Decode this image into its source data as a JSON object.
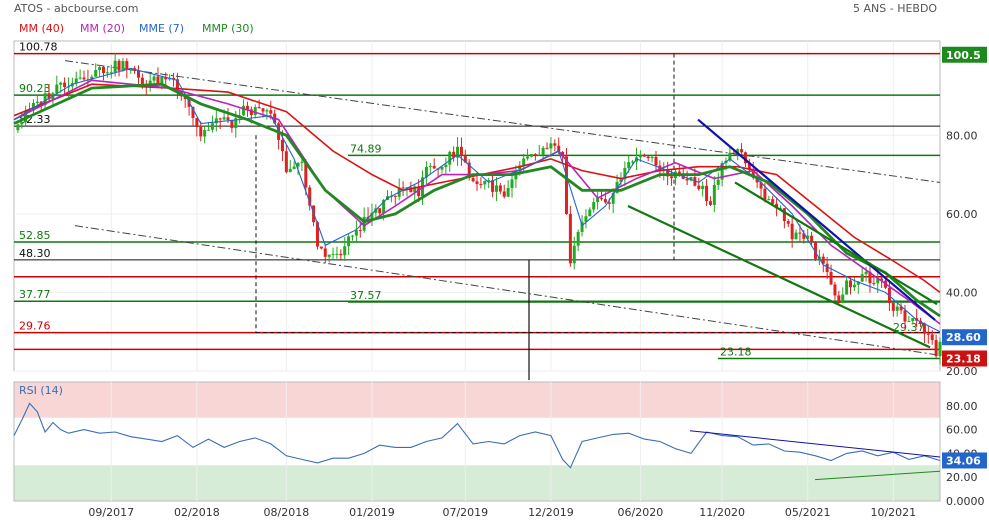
{
  "header": {
    "title": "ATOS - abcbourse.com",
    "period": "5 ANS - HEBDO"
  },
  "legend": [
    {
      "label": "MM (40)",
      "color": "#dd1111"
    },
    {
      "label": "MM (20)",
      "color": "#bb22bb"
    },
    {
      "label": "MME (7)",
      "color": "#2266cc"
    },
    {
      "label": "MMP (30)",
      "color": "#228822"
    }
  ],
  "colors": {
    "candle_up": "#22aa22",
    "candle_down": "#dd2222",
    "support": "#cc0000",
    "resistance": "#117711",
    "trendline": "#1111aa",
    "rsi_line": "#3a6fb0"
  },
  "chart_data": [
    {
      "type": "line",
      "title": "ATOS",
      "period": "5 ANS - HEBDO",
      "ylim": [
        20,
        104
      ],
      "y_ticks": [
        80,
        60,
        40,
        20
      ],
      "x_ticks": [
        "09/2017",
        "02/2018",
        "08/2018",
        "01/2019",
        "07/2019",
        "12/2019",
        "06/2020",
        "11/2020",
        "05/2021",
        "10/2021"
      ],
      "x_tick_index": [
        25,
        47,
        70,
        92,
        116,
        138,
        161,
        182,
        204,
        226
      ],
      "current_price_tag": 28.6,
      "low_tag": 23.18,
      "high_tag": 100.5,
      "levels": [
        {
          "label": "100.78",
          "value": 100.78,
          "kind": "resistance-red"
        },
        {
          "label": "90.23",
          "value": 90.23,
          "kind": "green"
        },
        {
          "label": "82.33",
          "value": 82.33,
          "kind": "black"
        },
        {
          "label": "74.89",
          "value": 74.89,
          "kind": "green"
        },
        {
          "label": "52.85",
          "value": 52.85,
          "kind": "green"
        },
        {
          "label": "48.30",
          "value": 48.3,
          "kind": "black"
        },
        {
          "label": "44",
          "value": 44.0,
          "kind": "red"
        },
        {
          "label": "37.77",
          "value": 37.77,
          "kind": "green"
        },
        {
          "label": "37.57",
          "value": 37.57,
          "kind": "green"
        },
        {
          "label": "29.76",
          "value": 29.76,
          "kind": "red"
        },
        {
          "label": "29.37",
          "value": 29.37,
          "kind": "green"
        },
        {
          "label": "25.5",
          "value": 25.5,
          "kind": "red"
        },
        {
          "label": "23.18",
          "value": 23.18,
          "kind": "green"
        }
      ],
      "close_keypoints": [
        [
          0,
          82
        ],
        [
          6,
          88
        ],
        [
          12,
          93
        ],
        [
          20,
          96
        ],
        [
          28,
          98
        ],
        [
          34,
          93
        ],
        [
          40,
          95
        ],
        [
          44,
          90
        ],
        [
          48,
          80
        ],
        [
          52,
          84
        ],
        [
          56,
          83
        ],
        [
          60,
          87
        ],
        [
          64,
          85
        ],
        [
          66,
          86
        ],
        [
          68,
          78
        ],
        [
          70,
          72
        ],
        [
          74,
          72
        ],
        [
          78,
          52
        ],
        [
          82,
          49
        ],
        [
          84,
          50
        ],
        [
          88,
          56
        ],
        [
          92,
          60
        ],
        [
          96,
          63
        ],
        [
          100,
          68
        ],
        [
          104,
          65
        ],
        [
          106,
          72
        ],
        [
          110,
          72
        ],
        [
          114,
          77
        ],
        [
          118,
          68
        ],
        [
          122,
          68
        ],
        [
          126,
          64
        ],
        [
          130,
          72
        ],
        [
          134,
          75
        ],
        [
          138,
          77
        ],
        [
          141,
          74
        ],
        [
          143,
          47
        ],
        [
          145,
          55
        ],
        [
          149,
          62
        ],
        [
          153,
          64
        ],
        [
          157,
          71
        ],
        [
          161,
          76
        ],
        [
          165,
          72
        ],
        [
          169,
          70
        ],
        [
          173,
          69
        ],
        [
          177,
          66
        ],
        [
          179,
          63
        ],
        [
          181,
          70
        ],
        [
          183,
          75
        ],
        [
          187,
          76
        ],
        [
          190,
          68
        ],
        [
          193,
          65
        ],
        [
          196,
          62
        ],
        [
          200,
          55
        ],
        [
          203,
          55
        ],
        [
          206,
          50
        ],
        [
          208,
          46
        ],
        [
          210,
          43
        ],
        [
          212,
          38
        ],
        [
          214,
          42
        ],
        [
          218,
          44
        ],
        [
          222,
          43
        ],
        [
          224,
          40
        ],
        [
          227,
          35
        ],
        [
          231,
          32
        ],
        [
          235,
          30
        ],
        [
          237,
          25
        ],
        [
          238,
          28.6
        ]
      ],
      "series": [
        {
          "name": "MM (40)",
          "values": [
            [
              0,
              85
            ],
            [
              20,
              93
            ],
            [
              40,
              92
            ],
            [
              55,
              91
            ],
            [
              70,
              86
            ],
            [
              82,
              76
            ],
            [
              92,
              70
            ],
            [
              100,
              66
            ],
            [
              110,
              68
            ],
            [
              120,
              70
            ],
            [
              130,
              72
            ],
            [
              138,
              74
            ],
            [
              146,
              71
            ],
            [
              156,
              69
            ],
            [
              166,
              71
            ],
            [
              176,
              72
            ],
            [
              186,
              72
            ],
            [
              196,
              70
            ],
            [
              206,
              62
            ],
            [
              216,
              54
            ],
            [
              226,
              48
            ],
            [
              234,
              43
            ],
            [
              238,
              40
            ]
          ]
        },
        {
          "name": "MM (20)",
          "values": [
            [
              0,
              84
            ],
            [
              20,
              94
            ],
            [
              40,
              92
            ],
            [
              55,
              88
            ],
            [
              68,
              84
            ],
            [
              80,
              66
            ],
            [
              90,
              57
            ],
            [
              98,
              62
            ],
            [
              110,
              70
            ],
            [
              120,
              70
            ],
            [
              130,
              71
            ],
            [
              140,
              76
            ],
            [
              150,
              64
            ],
            [
              160,
              69
            ],
            [
              170,
              73
            ],
            [
              180,
              69
            ],
            [
              190,
              71
            ],
            [
              200,
              62
            ],
            [
              210,
              52
            ],
            [
              220,
              45
            ],
            [
              230,
              38
            ],
            [
              238,
              32
            ]
          ]
        },
        {
          "name": "MME (7)",
          "values": [
            [
              0,
              84
            ],
            [
              15,
              93
            ],
            [
              30,
              97
            ],
            [
              42,
              94
            ],
            [
              48,
              83
            ],
            [
              58,
              84
            ],
            [
              66,
              85
            ],
            [
              72,
              74
            ],
            [
              80,
              52
            ],
            [
              88,
              56
            ],
            [
              96,
              64
            ],
            [
              104,
              68
            ],
            [
              114,
              75
            ],
            [
              122,
              68
            ],
            [
              132,
              72
            ],
            [
              140,
              76
            ],
            [
              146,
              57
            ],
            [
              152,
              62
            ],
            [
              160,
              74
            ],
            [
              168,
              71
            ],
            [
              176,
              68
            ],
            [
              184,
              74
            ],
            [
              192,
              68
            ],
            [
              200,
              60
            ],
            [
              208,
              47
            ],
            [
              216,
              43
            ],
            [
              224,
              40
            ],
            [
              232,
              33
            ],
            [
              238,
              30
            ]
          ]
        },
        {
          "name": "MMP (30)",
          "values": [
            [
              0,
              83
            ],
            [
              20,
              92
            ],
            [
              38,
              93
            ],
            [
              48,
              88
            ],
            [
              60,
              84
            ],
            [
              70,
              80
            ],
            [
              80,
              66
            ],
            [
              90,
              58
            ],
            [
              98,
              60
            ],
            [
              108,
              66
            ],
            [
              118,
              70
            ],
            [
              128,
              70
            ],
            [
              138,
              72
            ],
            [
              146,
              66
            ],
            [
              156,
              66
            ],
            [
              166,
              70
            ],
            [
              176,
              70
            ],
            [
              184,
              72
            ],
            [
              194,
              68
            ],
            [
              204,
              60
            ],
            [
              214,
              50
            ],
            [
              224,
              45
            ],
            [
              232,
              38
            ],
            [
              238,
              34
            ]
          ]
        }
      ]
    },
    {
      "type": "line",
      "title": "RSI (14)",
      "ylim": [
        0,
        100
      ],
      "y_ticks": [
        80,
        60,
        40,
        20,
        0
      ],
      "overbought": 70,
      "oversold": 30,
      "current_value": 34.06,
      "series": [
        {
          "name": "RSI (14)",
          "values": [
            [
              0,
              55
            ],
            [
              2,
              68
            ],
            [
              4,
              82
            ],
            [
              6,
              75
            ],
            [
              8,
              58
            ],
            [
              10,
              66
            ],
            [
              12,
              60
            ],
            [
              14,
              57
            ],
            [
              18,
              60
            ],
            [
              22,
              57
            ],
            [
              26,
              58
            ],
            [
              30,
              54
            ],
            [
              34,
              52
            ],
            [
              38,
              50
            ],
            [
              42,
              55
            ],
            [
              46,
              45
            ],
            [
              50,
              52
            ],
            [
              54,
              45
            ],
            [
              58,
              50
            ],
            [
              62,
              53
            ],
            [
              66,
              48
            ],
            [
              70,
              38
            ],
            [
              74,
              35
            ],
            [
              78,
              32
            ],
            [
              82,
              36
            ],
            [
              86,
              36
            ],
            [
              90,
              40
            ],
            [
              94,
              47
            ],
            [
              98,
              45
            ],
            [
              102,
              45
            ],
            [
              106,
              50
            ],
            [
              110,
              53
            ],
            [
              114,
              65
            ],
            [
              118,
              48
            ],
            [
              122,
              50
            ],
            [
              126,
              48
            ],
            [
              130,
              55
            ],
            [
              134,
              58
            ],
            [
              138,
              55
            ],
            [
              141,
              35
            ],
            [
              143,
              28
            ],
            [
              146,
              50
            ],
            [
              150,
              53
            ],
            [
              154,
              56
            ],
            [
              158,
              57
            ],
            [
              162,
              52
            ],
            [
              166,
              50
            ],
            [
              170,
              44
            ],
            [
              174,
              40
            ],
            [
              178,
              58
            ],
            [
              182,
              55
            ],
            [
              186,
              54
            ],
            [
              190,
              47
            ],
            [
              194,
              48
            ],
            [
              198,
              42
            ],
            [
              202,
              41
            ],
            [
              206,
              38
            ],
            [
              210,
              34
            ],
            [
              214,
              40
            ],
            [
              218,
              42
            ],
            [
              222,
              38
            ],
            [
              226,
              41
            ],
            [
              230,
              35
            ],
            [
              234,
              38
            ],
            [
              238,
              34
            ]
          ]
        }
      ]
    }
  ]
}
